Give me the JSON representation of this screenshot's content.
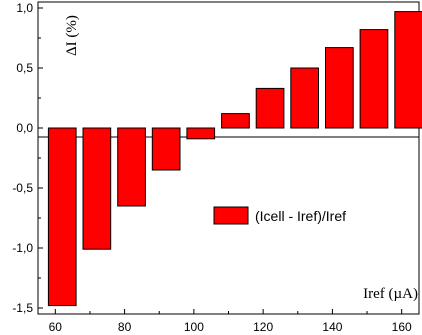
{
  "chart_data": {
    "type": "bar",
    "title": "",
    "xlabel": "Iref (µA)",
    "ylabel": "ΔI (%)",
    "xlim": [
      55,
      165
    ],
    "ylim": [
      -1.55,
      1.05
    ],
    "bar_width": 8,
    "bar_color": "#ff0000",
    "legend_position": "right-middle",
    "grid": false,
    "x_ticks": [
      60,
      80,
      100,
      120,
      140,
      160
    ],
    "x_tick_labels": [
      "60",
      "80",
      "100",
      "120",
      "140",
      "160"
    ],
    "y_ticks": [
      -1.5,
      -1.0,
      -0.5,
      0.0,
      0.5,
      1.0
    ],
    "y_tick_labels": [
      "-1,5",
      "-1,0",
      "-0,5",
      "0,0",
      "0,5",
      "1,0"
    ],
    "series": [
      {
        "name": "(Icell - Iref)/Iref",
        "x": [
          62,
          72,
          82,
          92,
          102,
          112,
          122,
          132,
          142,
          152,
          162
        ],
        "values": [
          -1.48,
          -1.01,
          -0.65,
          -0.35,
          -0.09,
          0.12,
          0.33,
          0.5,
          0.67,
          0.82,
          0.97
        ]
      }
    ]
  }
}
